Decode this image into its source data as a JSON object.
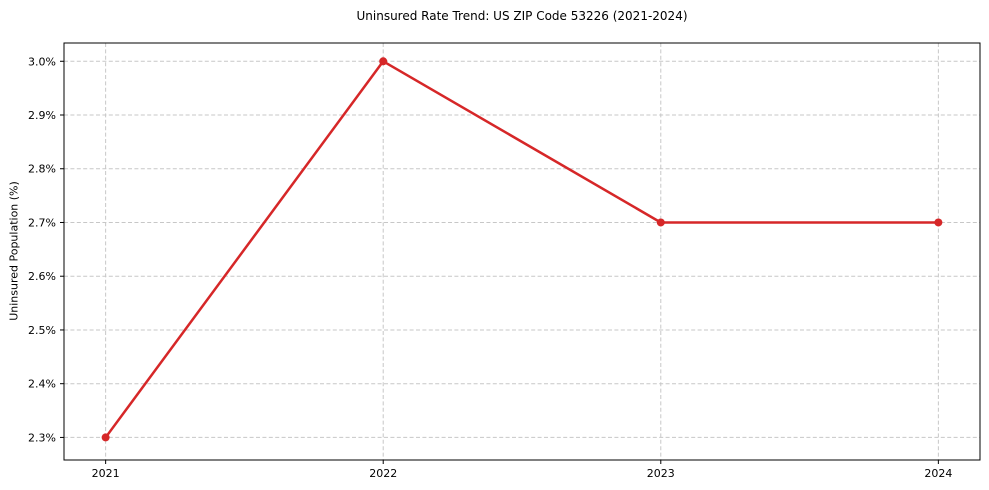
{
  "chart_data": {
    "type": "line",
    "title": "Uninsured Rate Trend: US ZIP Code 53226 (2021-2024)",
    "xlabel": "",
    "ylabel": "Uninsured Population (%)",
    "x": [
      2021,
      2022,
      2023,
      2024
    ],
    "values": [
      2.3,
      3.0,
      2.7,
      2.7
    ],
    "value_unit": "percent",
    "x_ticks": [
      2021,
      2022,
      2023,
      2024
    ],
    "x_tick_labels": [
      "2021",
      "2022",
      "2023",
      "2024"
    ],
    "y_ticks": [
      2.3,
      2.4,
      2.5,
      2.6,
      2.7,
      2.8,
      2.9,
      3.0
    ],
    "y_tick_labels": [
      "2.3%",
      "2.4%",
      "2.5%",
      "2.6%",
      "2.7%",
      "2.8%",
      "2.9%",
      "3.0%"
    ],
    "xlim": [
      2020.85,
      2024.15
    ],
    "ylim": [
      2.258,
      3.034
    ],
    "grid": true,
    "grid_style": "dashed",
    "legend": "none",
    "colors": {
      "line": "#d62728",
      "marker": "#d62728",
      "grid": "#c7c7c7",
      "axis": "#000000",
      "text": "#000000",
      "background": "#ffffff"
    }
  }
}
